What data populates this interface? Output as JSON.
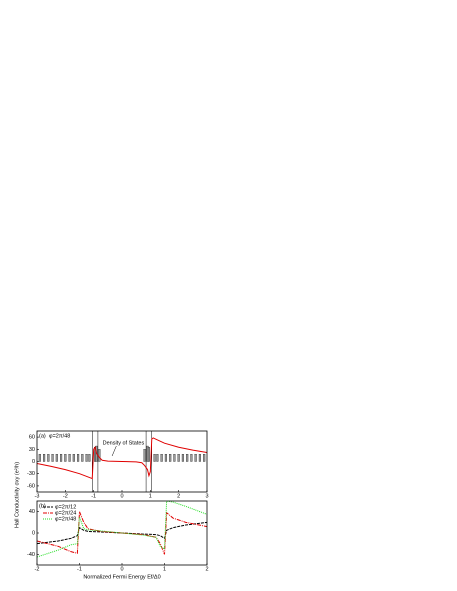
{
  "chart_data": [
    {
      "type": "line",
      "panel_label": "(a)",
      "subtitle": "φ=2π/48",
      "annotation": "Density of States",
      "x": [
        -3,
        -2.5,
        -2,
        -1.5,
        -1.2,
        -1.05,
        -1.0,
        -0.95,
        -0.9,
        -0.8,
        -0.7,
        -0.5,
        0,
        0.5,
        0.7,
        0.8,
        0.9,
        0.95,
        1.0,
        1.05,
        1.1,
        1.5,
        2,
        2.5,
        3
      ],
      "series": [
        {
          "color": "#e00000",
          "dash": "",
          "values": [
            -5,
            -12,
            -20,
            -30,
            -38,
            -42,
            30,
            35,
            20,
            10,
            3,
            1,
            0,
            -1,
            -3,
            -10,
            -20,
            -35,
            -25,
            55,
            58,
            45,
            35,
            28,
            22
          ]
        }
      ],
      "dos": {
        "color": "#9a9a9a",
        "x": [
          -2.9,
          -2.75,
          -2.6,
          -2.45,
          -2.3,
          -2.15,
          -2.0,
          -1.85,
          -1.7,
          -1.55,
          -1.4,
          -1.25,
          -1.15,
          -0.95,
          -0.9,
          -0.8,
          0.8,
          0.9,
          0.95,
          1.15,
          1.25,
          1.4,
          1.55,
          1.7,
          1.85,
          2.0,
          2.15,
          2.3,
          2.45,
          2.6,
          2.75,
          2.9
        ],
        "values": [
          18,
          18,
          18,
          18,
          18,
          18,
          18,
          18,
          18,
          18,
          18,
          18,
          18,
          35,
          38,
          30,
          30,
          38,
          35,
          18,
          18,
          18,
          18,
          18,
          18,
          18,
          18,
          18,
          18,
          18,
          18,
          18
        ]
      },
      "vlines": [
        -1.05,
        -0.85,
        0.85,
        1.05
      ],
      "xlim": [
        -3,
        3
      ],
      "xticks": [
        -3,
        -2,
        -1,
        0,
        1,
        2,
        3
      ],
      "ylim": [
        -75,
        75
      ],
      "yticks": [
        -60,
        -30,
        0,
        30,
        60
      ]
    },
    {
      "type": "line",
      "panel_label": "(b)",
      "x_label": "Normalized Fermi Energy Ef/Δ0",
      "y_label": "Hall Conductivity σxy (e²/h)",
      "x": [
        -2,
        -1.5,
        -1.2,
        -1.05,
        -1.0,
        -0.9,
        -0.8,
        -0.5,
        0,
        0.5,
        0.8,
        0.9,
        1.0,
        1.05,
        1.2,
        1.5,
        2
      ],
      "series": [
        {
          "name": "φ=2π/12",
          "color": "#000000",
          "dash": "3,1",
          "values": [
            -20,
            -15,
            -10,
            -5,
            10,
            5,
            3,
            2,
            0,
            -2,
            -3,
            -5,
            -10,
            5,
            10,
            15,
            20
          ]
        },
        {
          "name": "φ=2π/24",
          "color": "#e00000",
          "dash": "4,1,1,1",
          "values": [
            -15,
            -25,
            -35,
            -38,
            40,
            20,
            8,
            3,
            0,
            -3,
            -8,
            -20,
            -40,
            38,
            28,
            20,
            12
          ]
        },
        {
          "name": "φ=2π/48",
          "color": "#22dd22",
          "dash": "1,1",
          "values": [
            -45,
            -32,
            -22,
            -20,
            30,
            8,
            6,
            4,
            0,
            -4,
            -8,
            -25,
            -30,
            60,
            58,
            50,
            35
          ]
        }
      ],
      "xlim": [
        -2,
        2
      ],
      "xticks": [
        -2,
        -1,
        0,
        1,
        2
      ],
      "ylim": [
        -60,
        60
      ],
      "yticks": [
        -40,
        0,
        40
      ]
    }
  ]
}
